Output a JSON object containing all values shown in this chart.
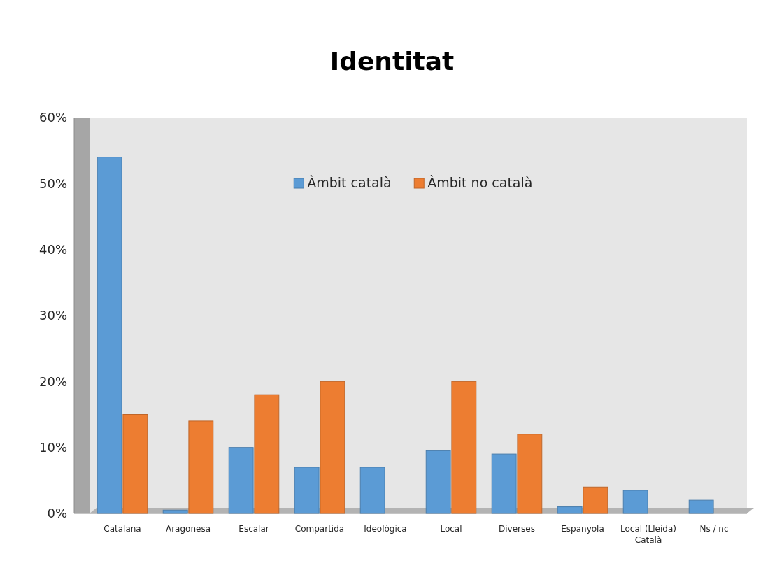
{
  "chart_data": {
    "type": "bar",
    "title": "Identitat",
    "categories": [
      "Catalana",
      "Aragonesa",
      "Escalar",
      "Compartida",
      "Ideològica",
      "Local",
      "Diverses",
      "Espanyola",
      "Local (Lleida) Català",
      "Ns / nc"
    ],
    "series": [
      {
        "name": "Àmbit català",
        "color": "#5b9bd5",
        "values": [
          54,
          0.5,
          10,
          7,
          7,
          9.5,
          9,
          1,
          3.5,
          2
        ]
      },
      {
        "name": "Àmbit no català",
        "color": "#ed7d31",
        "values": [
          15,
          14,
          18,
          20,
          0,
          20,
          12,
          4,
          0,
          0
        ]
      }
    ],
    "ylim": [
      0,
      60
    ],
    "yticks": [
      {
        "value": 0,
        "label": "0%"
      },
      {
        "value": 10,
        "label": "10%"
      },
      {
        "value": 20,
        "label": "20%"
      },
      {
        "value": 30,
        "label": "30%"
      },
      {
        "value": 40,
        "label": "40%"
      },
      {
        "value": 50,
        "label": "50%"
      },
      {
        "value": 60,
        "label": "60%"
      }
    ],
    "grid": false,
    "legend": "top"
  }
}
